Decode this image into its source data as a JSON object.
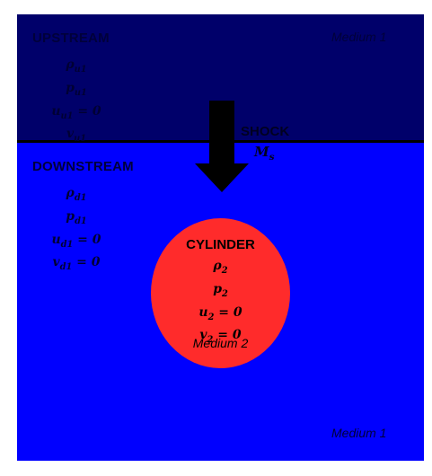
{
  "upstream": {
    "title": "UPSTREAM",
    "medium": "Medium 1",
    "vars": [
      "ρ_u1",
      "p_u1",
      "u_u1 = 0",
      "v_u1"
    ],
    "color": "#00006a"
  },
  "downstream": {
    "title": "DOWNSTREAM",
    "medium": "Medium 1",
    "vars": [
      "ρ_d1",
      "p_d1",
      "u_d1 = 0",
      "v_d1 = 0"
    ],
    "color": "#0000ff"
  },
  "shock": {
    "label": "SHOCK",
    "mach": "M_s",
    "arrow_icon": "down-arrow-icon"
  },
  "cylinder": {
    "title": "CYLINDER",
    "vars": [
      "ρ_2",
      "p_2",
      "u_2 = 0",
      "v_2 = 0"
    ],
    "medium": "Medium 2",
    "color": "#ff2b2b"
  }
}
